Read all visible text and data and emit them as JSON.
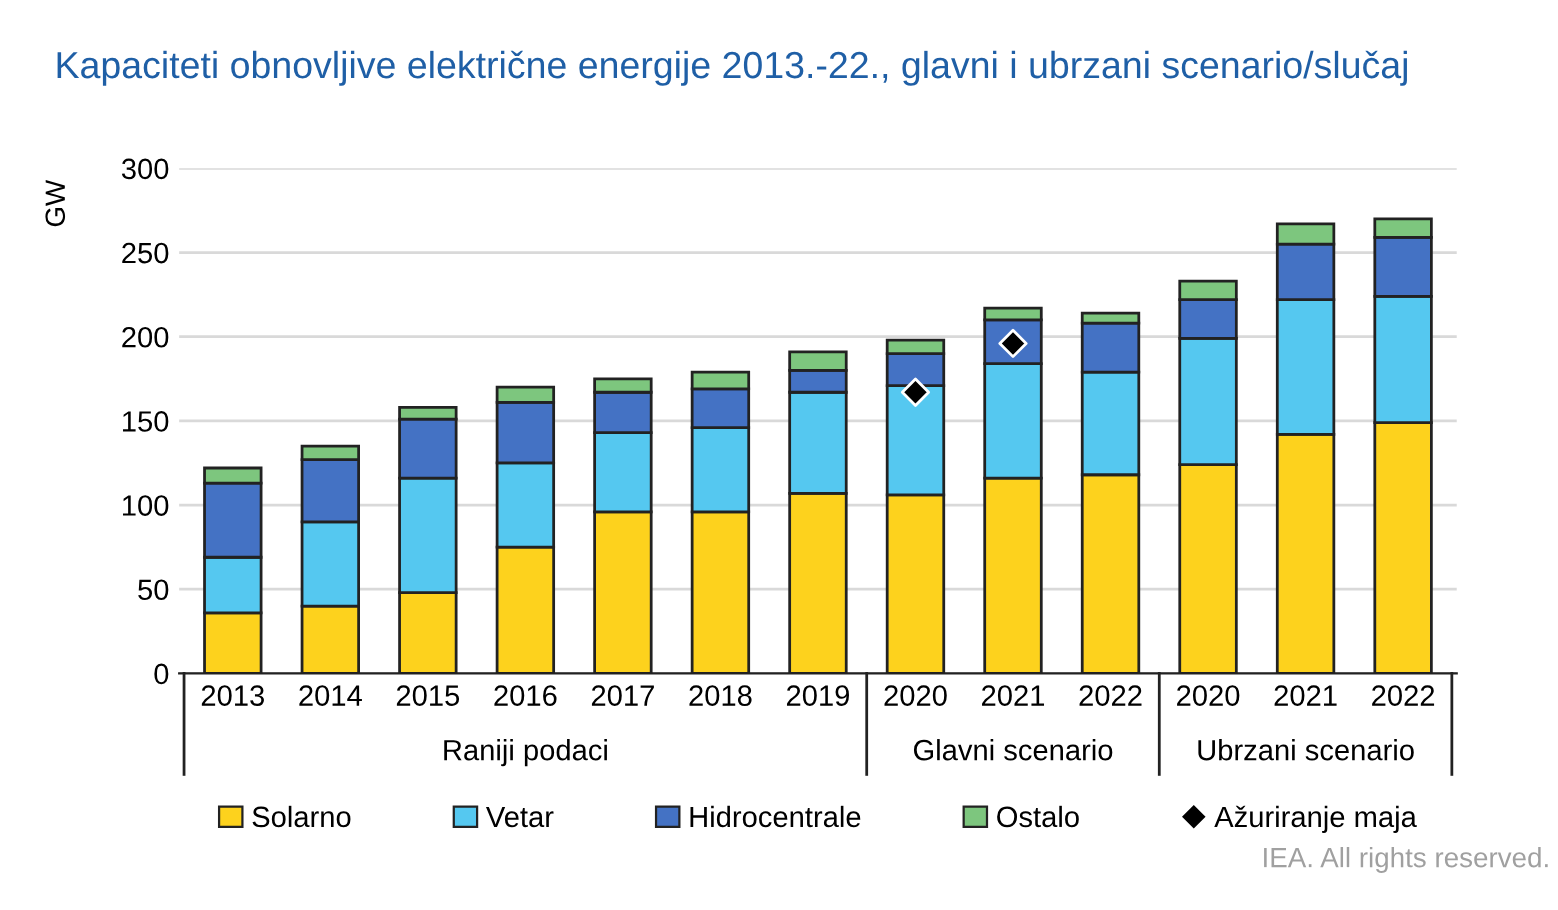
{
  "chart_data": {
    "type": "bar",
    "title": "Kapaciteti obnovljive električne energije 2013.-22., glavni i ubrzani scenario/slučaj",
    "ylabel": "GW",
    "stacked": true,
    "categories": [
      "2013",
      "2014",
      "2015",
      "2016",
      "2017",
      "2018",
      "2019",
      "2020",
      "2021",
      "2022",
      "2020",
      "2021",
      "2022"
    ],
    "series": [
      {
        "name": "Solarno",
        "color": "#fdd21d",
        "values": [
          36,
          40,
          48,
          75,
          96,
          96,
          107,
          106,
          116,
          118,
          124,
          142,
          149
        ]
      },
      {
        "name": "Vetar",
        "color": "#55c8f0",
        "values": [
          33,
          50,
          68,
          50,
          47,
          50,
          60,
          65,
          68,
          61,
          75,
          80,
          75
        ]
      },
      {
        "name": "Hidrocentrale",
        "color": "#4472c4",
        "values": [
          44,
          37,
          35,
          36,
          24,
          23,
          13,
          19,
          26,
          29,
          23,
          33,
          35
        ]
      },
      {
        "name": "Ostalo",
        "color": "#7dc67e",
        "values": [
          9,
          8,
          7,
          9,
          8,
          10,
          11,
          8,
          7,
          6,
          11,
          12,
          11
        ]
      },
      {
        "name": "Ažuriranje maja",
        "type": "scatter",
        "color": "#000000",
        "marker": "diamond",
        "values": [
          null,
          null,
          null,
          null,
          null,
          null,
          null,
          167,
          196,
          null,
          null,
          null,
          null
        ]
      }
    ],
    "ylim": [
      0,
      300
    ],
    "yticks": [
      0,
      50,
      100,
      150,
      200,
      250,
      300
    ],
    "grid": "y",
    "legend": "bottom",
    "annotations": [
      "Raniji podaci",
      "Glavni scenario",
      "Ubrzani scenario",
      "IEA. All rights reserved."
    ]
  }
}
